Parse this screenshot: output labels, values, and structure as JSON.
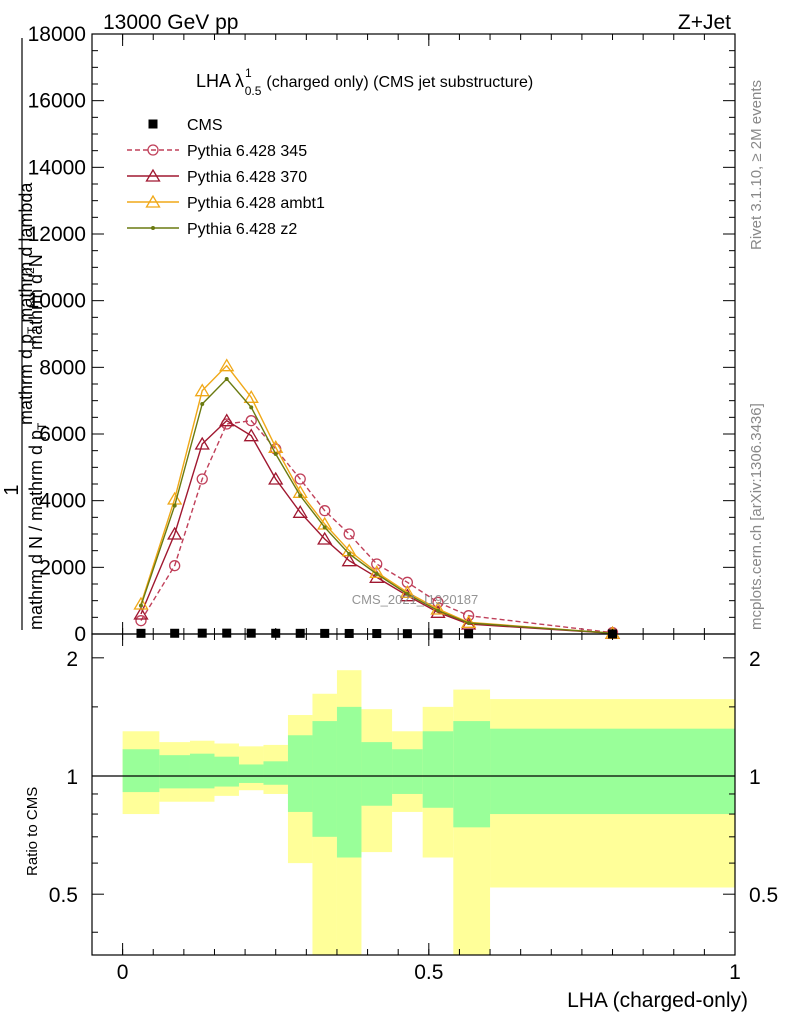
{
  "header": {
    "left": "13000 GeV pp",
    "right": "Z+Jet"
  },
  "side_labels": {
    "rivet": "Rivet 3.1.10, ≥ 2M events",
    "mcplots": "mcplots.cern.ch [arXiv:1306.3436]"
  },
  "watermark": "CMS_2021_I1920187",
  "chart_data": [
    {
      "type": "line",
      "title": "LHA λ",
      "title_sup": "1",
      "title_sub": "0.5",
      "title_rest": "(charged only) (CMS jet substructure)",
      "ylabel_parts": [
        "1",
        "mathrm d N / mathrm d p",
        "T",
        "mathrm d",
        "2",
        "N",
        "mathrm d p",
        "T",
        "mathrm d lambda"
      ],
      "xlim": [
        -0.05,
        1.0
      ],
      "ylim": [
        0,
        18000
      ],
      "yticks": [
        0,
        2000,
        4000,
        6000,
        8000,
        10000,
        12000,
        14000,
        16000,
        18000
      ],
      "ytick_labels": [
        "0",
        "2000",
        "4000",
        "6000",
        "8000",
        "10000",
        "12000",
        "14000",
        "16000",
        "18000"
      ],
      "legend_position": "top-left",
      "series": [
        {
          "name": "CMS",
          "color": "#000000",
          "marker": "square",
          "x": [
            0.03,
            0.085,
            0.13,
            0.17,
            0.21,
            0.25,
            0.29,
            0.33,
            0.37,
            0.415,
            0.465,
            0.515,
            0.565,
            0.8
          ],
          "values": [
            20,
            22,
            25,
            26,
            24,
            22,
            20,
            18,
            16,
            14,
            10,
            8,
            6,
            2
          ]
        },
        {
          "name": "Pythia 6.428 345",
          "color": "#c0405a",
          "marker": "circle",
          "dash": true,
          "x": [
            0.03,
            0.085,
            0.13,
            0.17,
            0.21,
            0.25,
            0.29,
            0.33,
            0.37,
            0.415,
            0.465,
            0.515,
            0.565,
            0.8
          ],
          "values": [
            400,
            2050,
            4650,
            6300,
            6400,
            5550,
            4650,
            3700,
            3000,
            2100,
            1550,
            950,
            550,
            40
          ]
        },
        {
          "name": "Pythia 6.428 370",
          "color": "#a01830",
          "marker": "triangle",
          "x": [
            0.03,
            0.085,
            0.13,
            0.17,
            0.21,
            0.25,
            0.29,
            0.33,
            0.37,
            0.415,
            0.465,
            0.515,
            0.565,
            0.8
          ],
          "values": [
            600,
            3000,
            5700,
            6400,
            5950,
            4650,
            3650,
            2850,
            2200,
            1700,
            1150,
            650,
            300,
            20
          ]
        },
        {
          "name": "Pythia 6.428 ambt1",
          "color": "#f0a818",
          "marker": "triangle",
          "x": [
            0.03,
            0.085,
            0.13,
            0.17,
            0.21,
            0.25,
            0.29,
            0.33,
            0.37,
            0.415,
            0.465,
            0.515,
            0.565,
            0.8
          ],
          "values": [
            900,
            4050,
            7300,
            8050,
            7100,
            5600,
            4250,
            3300,
            2500,
            1850,
            1250,
            750,
            350,
            25
          ]
        },
        {
          "name": "Pythia 6.428 z2",
          "color": "#6a7a10",
          "marker": "dot",
          "x": [
            0.03,
            0.085,
            0.13,
            0.17,
            0.21,
            0.25,
            0.29,
            0.33,
            0.37,
            0.415,
            0.465,
            0.515,
            0.565,
            0.8
          ],
          "values": [
            850,
            3850,
            6900,
            7650,
            6800,
            5400,
            4150,
            3200,
            2400,
            1800,
            1200,
            700,
            330,
            25
          ]
        }
      ]
    },
    {
      "type": "area",
      "xlabel": "LHA (charged-only)",
      "ylabel": "Ratio to CMS",
      "xlim": [
        -0.05,
        1.0
      ],
      "ylim": [
        0.35,
        2.3
      ],
      "xticks": [
        0,
        0.5,
        1
      ],
      "xtick_labels": [
        "0",
        "0.5",
        "1"
      ],
      "yticks": [
        0.5,
        1,
        2
      ],
      "ytick_labels": [
        "0.5",
        "1",
        "2"
      ],
      "bins": [
        {
          "lo": 0.0,
          "hi": 0.06,
          "inner": [
            0.91,
            1.17
          ],
          "outer": [
            0.8,
            1.3
          ]
        },
        {
          "lo": 0.06,
          "hi": 0.11,
          "inner": [
            0.93,
            1.13
          ],
          "outer": [
            0.86,
            1.22
          ]
        },
        {
          "lo": 0.11,
          "hi": 0.15,
          "inner": [
            0.93,
            1.14
          ],
          "outer": [
            0.86,
            1.23
          ]
        },
        {
          "lo": 0.15,
          "hi": 0.19,
          "inner": [
            0.94,
            1.12
          ],
          "outer": [
            0.89,
            1.21
          ]
        },
        {
          "lo": 0.19,
          "hi": 0.23,
          "inner": [
            0.96,
            1.07
          ],
          "outer": [
            0.92,
            1.19
          ]
        },
        {
          "lo": 0.23,
          "hi": 0.27,
          "inner": [
            0.95,
            1.09
          ],
          "outer": [
            0.9,
            1.2
          ]
        },
        {
          "lo": 0.27,
          "hi": 0.31,
          "inner": [
            0.81,
            1.27
          ],
          "outer": [
            0.6,
            1.43
          ]
        },
        {
          "lo": 0.31,
          "hi": 0.35,
          "inner": [
            0.7,
            1.38
          ],
          "outer": [
            0.35,
            1.62
          ]
        },
        {
          "lo": 0.35,
          "hi": 0.39,
          "inner": [
            0.62,
            1.5
          ],
          "outer": [
            0.35,
            1.86
          ]
        },
        {
          "lo": 0.39,
          "hi": 0.44,
          "inner": [
            0.84,
            1.22
          ],
          "outer": [
            0.64,
            1.48
          ]
        },
        {
          "lo": 0.44,
          "hi": 0.49,
          "inner": [
            0.9,
            1.17
          ],
          "outer": [
            0.81,
            1.3
          ]
        },
        {
          "lo": 0.49,
          "hi": 0.54,
          "inner": [
            0.83,
            1.3
          ],
          "outer": [
            0.62,
            1.5
          ]
        },
        {
          "lo": 0.54,
          "hi": 0.6,
          "inner": [
            0.74,
            1.38
          ],
          "outer": [
            0.35,
            1.66
          ]
        },
        {
          "lo": 0.6,
          "hi": 1.0,
          "inner": [
            0.8,
            1.32
          ],
          "outer": [
            0.52,
            1.57
          ]
        }
      ]
    }
  ]
}
